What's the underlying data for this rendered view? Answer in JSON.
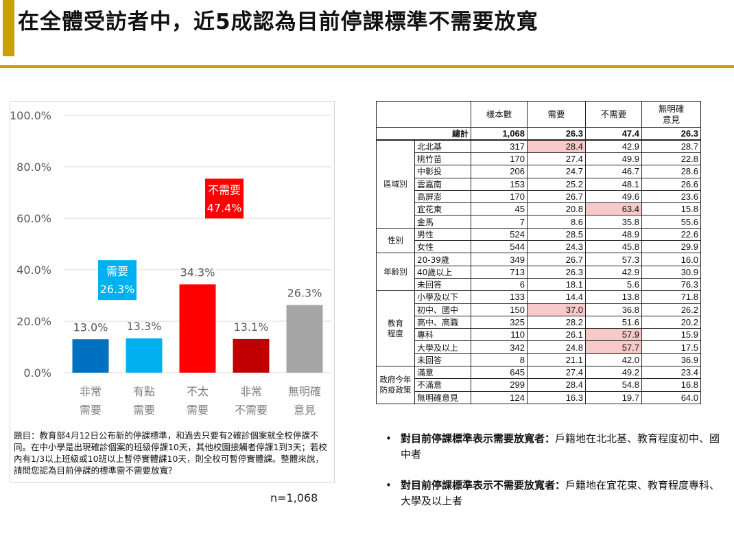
{
  "title": "在全體受訪者中，近5成認為目前停課標準不需要放寬",
  "chart_data": {
    "type": "bar",
    "categories": [
      [
        "非常",
        "需要"
      ],
      [
        "有點",
        "需要"
      ],
      [
        "不太",
        "需要"
      ],
      [
        "非常",
        "不需要"
      ],
      [
        "無明確",
        "意見"
      ]
    ],
    "values": [
      13.0,
      13.3,
      34.3,
      13.1,
      26.3
    ],
    "value_labels": [
      "13.0%",
      "13.3%",
      "34.3%",
      "13.1%",
      "26.3%"
    ],
    "bar_colors": [
      "#0070c0",
      "#00b0f0",
      "#ff0000",
      "#c00000",
      "#a6a6a6"
    ],
    "ylim": [
      0,
      100
    ],
    "yticks": [
      0,
      20,
      40,
      60,
      80,
      100
    ],
    "ytick_labels": [
      "0.0%",
      "20.0%",
      "40.0%",
      "60.0%",
      "80.0%",
      "100.0%"
    ],
    "annotations": [
      {
        "label": "需要",
        "value": "26.3%",
        "color": "#00b0f0"
      },
      {
        "label": "不需要",
        "value": "47.4%",
        "color": "#ff0000"
      }
    ],
    "grid": true
  },
  "question": "題目：教育部4月12日公布新的停課標準，和過去只要有2確診個案就全校停課不同。在中小學是出現確診個案的班級停課10天，其他校園接觸者停課1到3天；若校內有1/3以上班級或10班以上暫停實體課10天，則全校可暫停實體課。整體來說，請問您認為目前停課的標準需不需要放寬？",
  "n_label": "n=1,068",
  "table": {
    "headers": [
      "樣本數",
      "需要",
      "不需要",
      "無明確意見"
    ],
    "header_lines": [
      [
        "樣本數"
      ],
      [
        "需要"
      ],
      [
        "不需要"
      ],
      [
        "無明確",
        "意見"
      ]
    ],
    "total": {
      "label": "總計",
      "values": [
        "1,068",
        "26.3",
        "47.4",
        "26.3"
      ]
    },
    "groups": [
      {
        "name": [
          "區域別"
        ],
        "rows": [
          {
            "label": "北北基",
            "values": [
              "317",
              "28.4",
              "42.9",
              "28.7"
            ],
            "hl": [
              1
            ]
          },
          {
            "label": "桃竹苗",
            "values": [
              "170",
              "27.4",
              "49.9",
              "22.8"
            ],
            "hl": []
          },
          {
            "label": "中彰投",
            "values": [
              "206",
              "24.7",
              "46.7",
              "28.6"
            ],
            "hl": []
          },
          {
            "label": "雲嘉南",
            "values": [
              "153",
              "25.2",
              "48.1",
              "26.6"
            ],
            "hl": []
          },
          {
            "label": "高屏澎",
            "values": [
              "170",
              "26.7",
              "49.6",
              "23.6"
            ],
            "hl": []
          },
          {
            "label": "宜花東",
            "values": [
              "45",
              "20.8",
              "63.4",
              "15.8"
            ],
            "hl": [
              2
            ]
          },
          {
            "label": "金馬",
            "values": [
              "7",
              "8.6",
              "35.8",
              "55.6"
            ],
            "hl": []
          }
        ]
      },
      {
        "name": [
          "性別"
        ],
        "rows": [
          {
            "label": "男性",
            "values": [
              "524",
              "28.5",
              "48.9",
              "22.6"
            ],
            "hl": []
          },
          {
            "label": "女性",
            "values": [
              "544",
              "24.3",
              "45.8",
              "29.9"
            ],
            "hl": []
          }
        ]
      },
      {
        "name": [
          "年齡別"
        ],
        "rows": [
          {
            "label": "20-39歲",
            "values": [
              "349",
              "26.7",
              "57.3",
              "16.0"
            ],
            "hl": []
          },
          {
            "label": "40歲以上",
            "values": [
              "713",
              "26.3",
              "42.9",
              "30.9"
            ],
            "hl": []
          },
          {
            "label": "未回答",
            "values": [
              "6",
              "18.1",
              "5.6",
              "76.3"
            ],
            "hl": []
          }
        ]
      },
      {
        "name": [
          "教育",
          "程度"
        ],
        "rows": [
          {
            "label": "小學及以下",
            "values": [
              "133",
              "14.4",
              "13.8",
              "71.8"
            ],
            "hl": []
          },
          {
            "label": "初中、國中",
            "values": [
              "150",
              "37.0",
              "36.8",
              "26.2"
            ],
            "hl": [
              1
            ]
          },
          {
            "label": "高中、高職",
            "values": [
              "325",
              "28.2",
              "51.6",
              "20.2"
            ],
            "hl": []
          },
          {
            "label": "專科",
            "values": [
              "110",
              "26.1",
              "57.9",
              "15.9"
            ],
            "hl": [
              2
            ]
          },
          {
            "label": "大學及以上",
            "values": [
              "342",
              "24.8",
              "57.7",
              "17.5"
            ],
            "hl": [
              2
            ]
          },
          {
            "label": "未回答",
            "values": [
              "8",
              "21.1",
              "42.0",
              "36.9"
            ],
            "hl": []
          }
        ]
      },
      {
        "name": [
          "政府今年",
          "防疫政策"
        ],
        "rows": [
          {
            "label": "滿意",
            "values": [
              "645",
              "27.4",
              "49.2",
              "23.4"
            ],
            "hl": []
          },
          {
            "label": "不滿意",
            "values": [
              "299",
              "28.4",
              "54.8",
              "16.8"
            ],
            "hl": []
          },
          {
            "label": "無明確意見",
            "values": [
              "124",
              "16.3",
              "19.7",
              "64.0"
            ],
            "hl": []
          }
        ]
      }
    ]
  },
  "bullets": [
    {
      "lead": "對目前停課標準表示需要放寬者：",
      "text": "戶籍地在北北基、教育程度初中、國中者"
    },
    {
      "lead": "對目前停課標準表示不需要放寬者：",
      "text": "戶籍地在宜花東、教育程度專科、大學及以上者"
    }
  ],
  "bullet_glyph": "•"
}
